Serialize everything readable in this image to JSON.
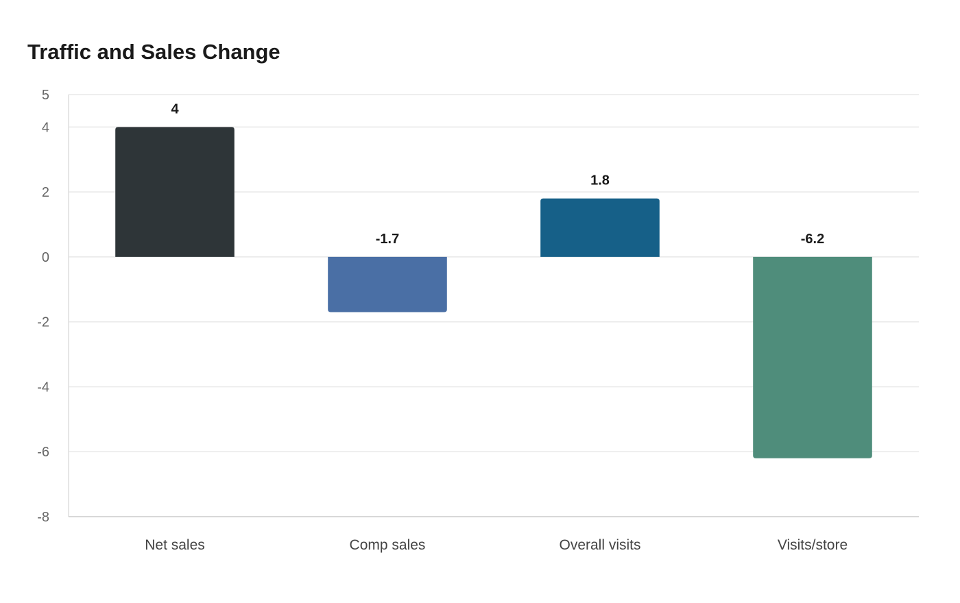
{
  "chart_data": {
    "type": "bar",
    "title": "Traffic and Sales Change",
    "xlabel": "",
    "ylabel": "",
    "categories": [
      "Net sales",
      "Comp sales",
      "Overall visits",
      "Visits/store"
    ],
    "values": [
      4,
      -1.7,
      1.8,
      -6.2
    ],
    "value_labels": [
      "4",
      "-1.7",
      "1.8",
      "-6.2"
    ],
    "colors": [
      "#2e3538",
      "#4a6fa5",
      "#166088",
      "#4f8d7b"
    ],
    "ylim": [
      -8,
      5
    ],
    "yticks": [
      -8,
      -6,
      -4,
      -2,
      0,
      2,
      4,
      5
    ],
    "grid": true,
    "legend": "none"
  }
}
